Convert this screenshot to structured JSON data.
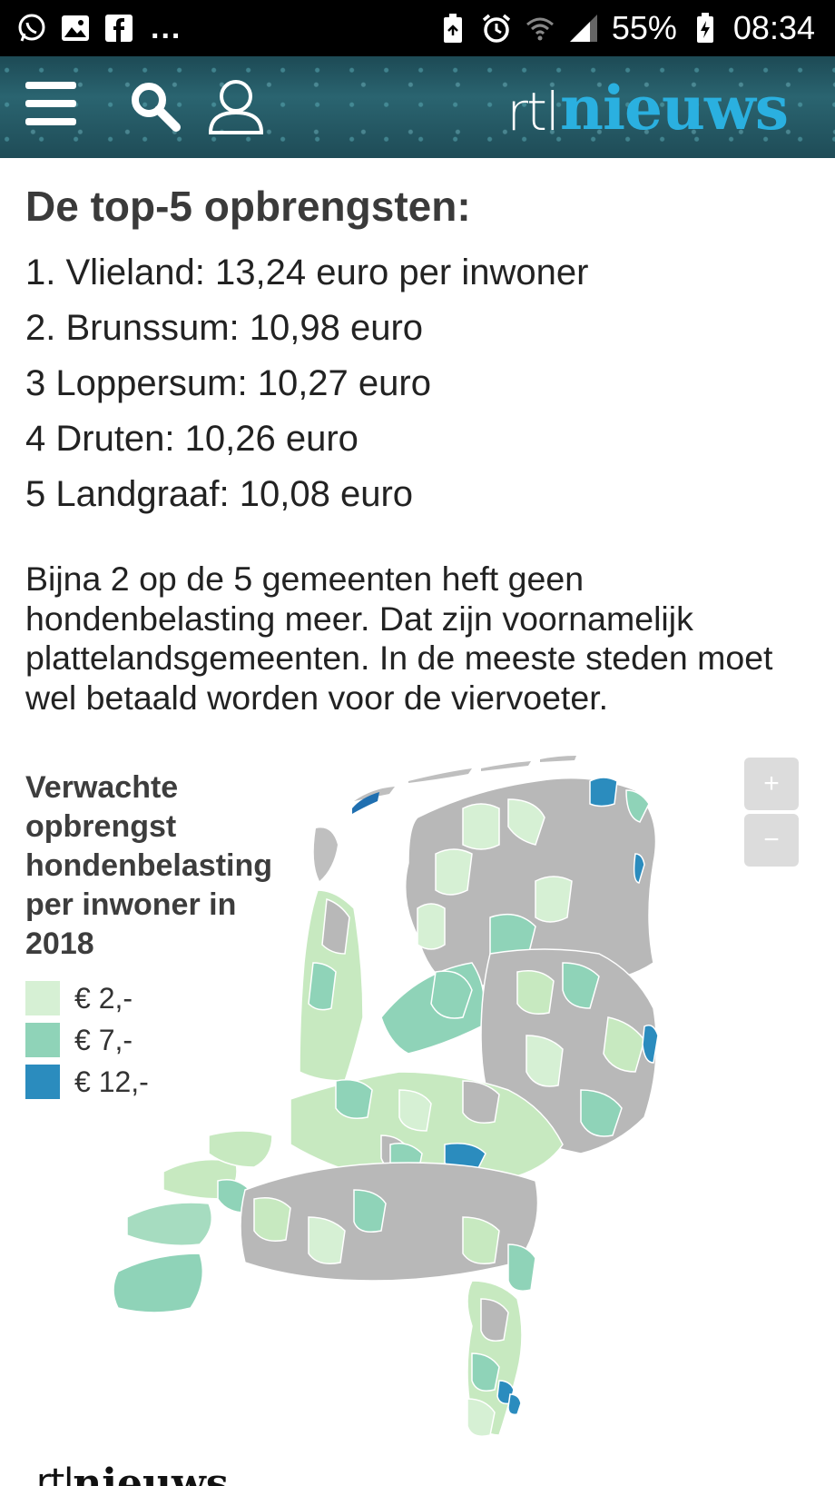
{
  "status_bar": {
    "battery": "55%",
    "time": "08:34",
    "overflow": "..."
  },
  "header": {
    "logo_rtl": "rtl",
    "logo_nieuws": "nieuws"
  },
  "article": {
    "heading": "De top-5 opbrengsten:",
    "top5": [
      "1. Vlieland: 13,24 euro per inwoner",
      "2. Brunssum: 10,98 euro",
      "3 Loppersum: 10,27 euro",
      "4 Druten: 10,26 euro",
      "5 Landgraaf: 10,08 euro"
    ],
    "paragraph": "Bijna 2 op de 5 gemeenten heft geen hondenbelasting meer. Dat zijn voornamelijk plattelandsgemeenten. In de meeste steden moet wel betaald worden voor de viervoeter."
  },
  "map": {
    "legend_title": "Verwachte opbrengst hondenbelasting per inwoner in 2018",
    "legend": [
      {
        "label": "€ 2,-",
        "color": "#d6f0d4"
      },
      {
        "label": "€ 7,-",
        "color": "#8fd3b8"
      },
      {
        "label": "€ 12,-",
        "color": "#2b8cbe"
      }
    ],
    "no_tax_color": "#b8b8b8",
    "zoom_in": "+",
    "zoom_out": "−"
  },
  "footer": {
    "logo_rtl": "rtl",
    "logo_nieuws": "nieuws"
  }
}
